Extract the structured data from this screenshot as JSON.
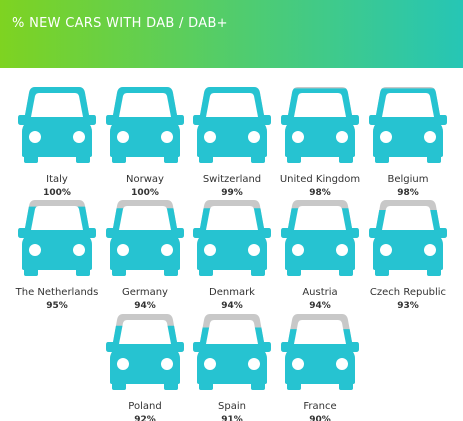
{
  "header": {
    "title": "% NEW CARS WITH DAB / DAB+",
    "gradient_start": "#7ed321",
    "gradient_end": "#26c6b5"
  },
  "colors": {
    "car_fill": "#26c3d1",
    "car_empty": "#c8c8c8",
    "car_detail": "#ffffff",
    "text": "#333333"
  },
  "icon": "car-front-icon",
  "chart_data": {
    "type": "pictograph",
    "title": "% NEW CARS WITH DAB / DAB+",
    "unit": "%",
    "categories": [
      "Italy",
      "Norway",
      "Switzerland",
      "United Kingdom",
      "Belgium",
      "The Netherlands",
      "Germany",
      "Denmark",
      "Austria",
      "Czech Republic",
      "Poland",
      "Spain",
      "France"
    ],
    "values": [
      100,
      100,
      99,
      98,
      98,
      95,
      94,
      94,
      94,
      93,
      92,
      91,
      90
    ],
    "value_labels": [
      "100%",
      "100%",
      "99%",
      "98%",
      "98%",
      "95%",
      "94%",
      "94%",
      "94%",
      "93%",
      "92%",
      "91%",
      "90%"
    ],
    "max": 100
  }
}
